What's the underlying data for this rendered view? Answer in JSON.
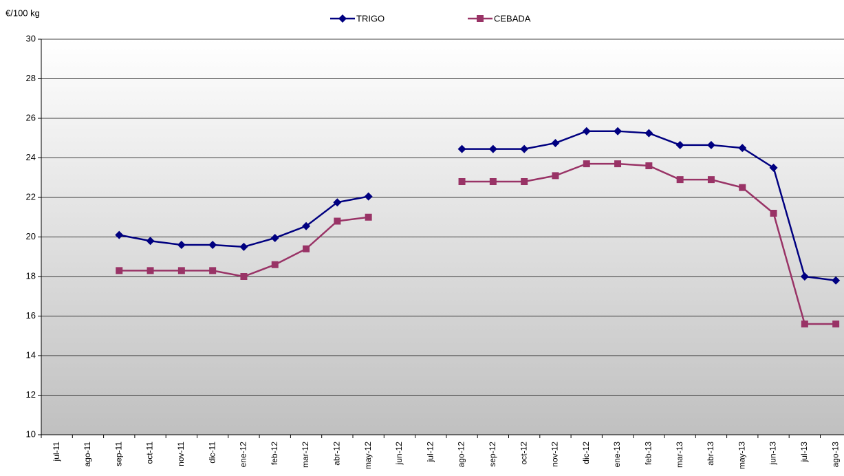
{
  "chart_data": {
    "type": "line",
    "y_label": "€/100 kg",
    "categories": [
      "jul-11",
      "ago-11",
      "sep-11",
      "oct-11",
      "nov-11",
      "dic-11",
      "ene-12",
      "feb-12",
      "mar-12",
      "abr-12",
      "may-12",
      "jun-12",
      "jul-12",
      "ago-12",
      "sep-12",
      "oct-12",
      "nov-12",
      "dic-12",
      "ene-13",
      "feb-13",
      "mar-13",
      "abr-13",
      "may-13",
      "jun-13",
      "jul-13",
      "ago-13"
    ],
    "series": [
      {
        "name": "TRIGO",
        "color": "#000080",
        "marker": "diamond",
        "values": [
          null,
          null,
          20.1,
          19.8,
          19.6,
          19.6,
          19.5,
          19.95,
          20.55,
          21.75,
          22.05,
          null,
          null,
          24.45,
          24.45,
          24.45,
          24.75,
          25.35,
          25.35,
          25.25,
          24.65,
          24.65,
          24.5,
          23.5,
          18.0,
          17.8
        ]
      },
      {
        "name": "CEBADA",
        "color": "#993366",
        "marker": "square",
        "values": [
          null,
          null,
          18.3,
          18.3,
          18.3,
          18.3,
          18.0,
          18.6,
          19.4,
          20.8,
          21.0,
          null,
          null,
          22.8,
          22.8,
          22.8,
          23.1,
          23.7,
          23.7,
          23.6,
          22.9,
          22.9,
          22.5,
          21.2,
          15.6,
          15.6
        ]
      }
    ],
    "ylim": [
      10,
      30
    ],
    "yticks": [
      10,
      12,
      14,
      16,
      18,
      20,
      22,
      24,
      26,
      28,
      30
    ],
    "grid": true
  }
}
